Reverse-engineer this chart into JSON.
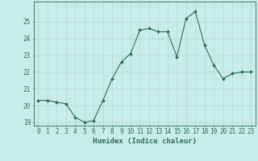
{
  "x": [
    0,
    1,
    2,
    3,
    4,
    5,
    6,
    7,
    8,
    9,
    10,
    11,
    12,
    13,
    14,
    15,
    16,
    17,
    18,
    19,
    20,
    21,
    22,
    23
  ],
  "y": [
    20.3,
    20.3,
    20.2,
    20.1,
    19.3,
    19.0,
    19.1,
    20.3,
    21.6,
    22.6,
    23.1,
    24.5,
    24.6,
    24.4,
    24.4,
    22.9,
    25.2,
    25.6,
    23.6,
    22.4,
    21.6,
    21.9,
    22.0,
    22.0
  ],
  "line_color": "#2e6b5e",
  "marker": "D",
  "marker_size": 2.0,
  "bg_color": "#c8ecec",
  "grid_color": "#b8d8d8",
  "tick_color": "#2e6b5e",
  "label_color": "#2e6b5e",
  "xlabel": "Humidex (Indice chaleur)",
  "ylim": [
    18.8,
    26.2
  ],
  "yticks": [
    19,
    20,
    21,
    22,
    23,
    24,
    25
  ],
  "xticks": [
    0,
    1,
    2,
    3,
    4,
    5,
    6,
    7,
    8,
    9,
    10,
    11,
    12,
    13,
    14,
    15,
    16,
    17,
    18,
    19,
    20,
    21,
    22,
    23
  ],
  "axis_fontsize": 5.5,
  "tick_fontsize": 5.5,
  "xlabel_fontsize": 6.5
}
